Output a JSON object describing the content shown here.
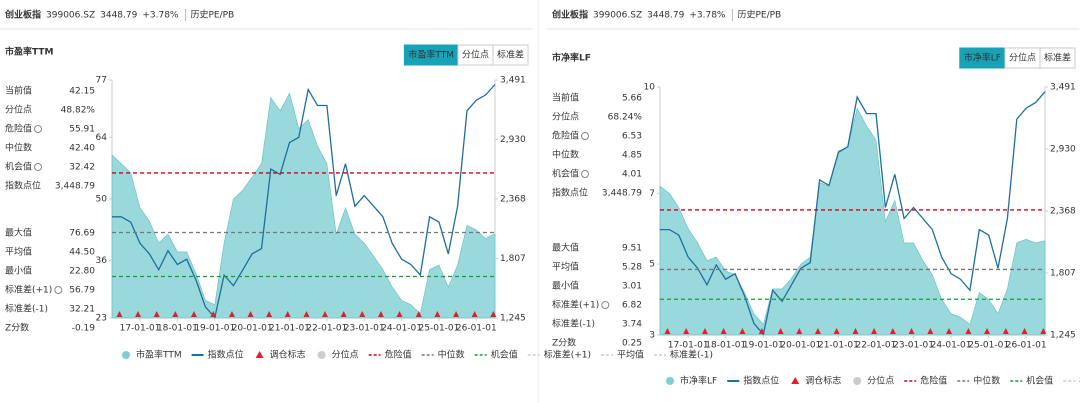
{
  "panels": [
    {
      "header": {
        "title": "创业板指",
        "code": "399006.SZ",
        "price": "3448.79",
        "change": "+3.78%",
        "link": "历史PE/PB"
      },
      "chart_title": "市盈率TTM",
      "tabs": [
        "市盈率TTM",
        "分位点",
        "标准差"
      ],
      "stats": [
        {
          "label": "当前值",
          "value": "42.15"
        },
        {
          "label": "分位点",
          "value": "48.82%"
        },
        {
          "label": "危险值",
          "value": "55.91",
          "info": true
        },
        {
          "label": "中位数",
          "value": "42.40"
        },
        {
          "label": "机会值",
          "value": "32.42",
          "info": true
        },
        {
          "label": "指数点位",
          "value": "3,448.79"
        },
        {
          "label": "最大值",
          "value": "76.69"
        },
        {
          "label": "平均值",
          "value": "44.50"
        },
        {
          "label": "最小值",
          "value": "22.80"
        },
        {
          "label": "标准差(+1)",
          "value": "56.79",
          "info": true
        },
        {
          "label": "标准差(-1)",
          "value": "32.21"
        },
        {
          "label": "Z分数",
          "value": "-0.19"
        }
      ],
      "chart_data": {
        "type": "line",
        "x": [
          "16-04-01",
          "16-07-01",
          "16-10-01",
          "17-01-01",
          "17-04-01",
          "17-07-01",
          "17-10-01",
          "18-01-01",
          "18-04-01",
          "18-07-01",
          "18-10-01",
          "19-01-01",
          "19-04-01",
          "19-07-01",
          "19-10-01",
          "20-01-01",
          "20-04-01",
          "20-07-01",
          "20-10-01",
          "21-01-01",
          "21-04-01",
          "21-07-01",
          "21-10-01",
          "22-01-01",
          "22-04-01",
          "22-07-01",
          "22-10-01",
          "23-01-01",
          "23-04-01",
          "23-07-01",
          "23-10-01",
          "24-01-01",
          "24-04-01",
          "24-07-01",
          "24-10-01",
          "25-01-01",
          "25-04-01",
          "25-07-01",
          "25-10-01",
          "26-01-01",
          "26-04-01",
          "26-07-01"
        ],
        "xlim": [
          "16-04-01",
          "26-07-01"
        ],
        "xticks": [
          "17-01-01",
          "18-01-01",
          "19-01-01",
          "20-01-01",
          "21-01-01",
          "22-01-01",
          "23-01-01",
          "24-01-01",
          "25-01-01",
          "26-01-01"
        ],
        "ylim": [
          23,
          77
        ],
        "yticks": [
          23,
          36,
          50,
          64,
          77
        ],
        "y2lim": [
          1245,
          3491
        ],
        "y2ticks": [
          {
            "value": 1245,
            "label": "1,245"
          },
          {
            "value": 1807,
            "label": "1,807"
          },
          {
            "value": 2368,
            "label": "2,368"
          },
          {
            "value": 2930,
            "label": "2,930"
          },
          {
            "value": 3491,
            "label": "3,491"
          }
        ],
        "series": [
          {
            "name": "市盈率TTM",
            "type": "area",
            "color": "#7fcfd2",
            "values": [
              60,
              58,
              56,
              48,
              45,
              40,
              42,
              38,
              38,
              33,
              27,
              26,
              40,
              50,
              52,
              55,
              58,
              73,
              70,
              74,
              66,
              68,
              62,
              58,
              42,
              48,
              42,
              40,
              37,
              34,
              30,
              27,
              26,
              24,
              34,
              35,
              30,
              35,
              44,
              43,
              41,
              42.15
            ]
          },
          {
            "name": "指数点位",
            "type": "line",
            "axis": "y2",
            "color": "#1d6f9e",
            "values": [
              2200,
              2200,
              2150,
              1950,
              1850,
              1700,
              1880,
              1750,
              1800,
              1600,
              1350,
              1250,
              1650,
              1550,
              1700,
              1850,
              1900,
              2650,
              2600,
              2900,
              2950,
              3400,
              3250,
              3250,
              2400,
              2700,
              2300,
              2400,
              2300,
              2200,
              1950,
              1800,
              1750,
              1650,
              2200,
              2150,
              1850,
              2300,
              3200,
              3300,
              3350,
              3448.79
            ]
          }
        ],
        "markers": {
          "name": "调仓标志",
          "color": "#e0202a",
          "x": [
            "16-06-13",
            "16-12-12",
            "17-06-12",
            "17-12-11",
            "18-06-11",
            "18-12-17",
            "19-06-17",
            "19-12-16",
            "20-06-15",
            "20-12-14",
            "21-06-15",
            "21-12-13",
            "22-06-13",
            "22-12-12",
            "23-06-12",
            "23-12-11",
            "24-06-17",
            "24-12-16",
            "25-06-16",
            "25-12-15",
            "26-06-15"
          ]
        },
        "inactive_series": [
          {
            "name": "分位点"
          }
        ],
        "reference_lines": [
          {
            "name": "危险值",
            "value": 55.91,
            "color": "#d0021b",
            "visible": true
          },
          {
            "name": "中位数",
            "value": 42.4,
            "color": "#777777",
            "visible": true
          },
          {
            "name": "机会值",
            "value": 32.42,
            "color": "#1a9a3c",
            "visible": true
          },
          {
            "name": "标准差(+1)",
            "value": 56.79,
            "color": "#cccccc",
            "visible": false
          },
          {
            "name": "平均值",
            "value": 44.5,
            "color": "#cccccc",
            "visible": false
          },
          {
            "name": "标准差(-1)",
            "value": 32.21,
            "color": "#cccccc",
            "visible": false
          }
        ]
      }
    },
    {
      "header": {
        "title": "创业板指",
        "code": "399006.SZ",
        "price": "3448.79",
        "change": "+3.78%",
        "link": "历史PE/PB"
      },
      "chart_title": "市净率LF",
      "tabs": [
        "市净率LF",
        "分位点",
        "标准差"
      ],
      "stats": [
        {
          "label": "当前值",
          "value": "5.66"
        },
        {
          "label": "分位点",
          "value": "68.24%"
        },
        {
          "label": "危险值",
          "value": "6.53",
          "info": true
        },
        {
          "label": "中位数",
          "value": "4.85"
        },
        {
          "label": "机会值",
          "value": "4.01",
          "info": true
        },
        {
          "label": "指数点位",
          "value": "3,448.79"
        },
        {
          "label": "最大值",
          "value": "9.51"
        },
        {
          "label": "平均值",
          "value": "5.28"
        },
        {
          "label": "最小值",
          "value": "3.01"
        },
        {
          "label": "标准差(+1)",
          "value": "6.82",
          "info": true
        },
        {
          "label": "标准差(-1)",
          "value": "3.74"
        },
        {
          "label": "Z分数",
          "value": "0.25"
        }
      ],
      "chart_data": {
        "type": "line",
        "x": [
          "16-04-01",
          "16-07-01",
          "16-10-01",
          "17-01-01",
          "17-04-01",
          "17-07-01",
          "17-10-01",
          "18-01-01",
          "18-04-01",
          "18-07-01",
          "18-10-01",
          "19-01-01",
          "19-04-01",
          "19-07-01",
          "19-10-01",
          "20-01-01",
          "20-04-01",
          "20-07-01",
          "20-10-01",
          "21-01-01",
          "21-04-01",
          "21-07-01",
          "21-10-01",
          "22-01-01",
          "22-04-01",
          "22-07-01",
          "22-10-01",
          "23-01-01",
          "23-04-01",
          "23-07-01",
          "23-10-01",
          "24-01-01",
          "24-04-01",
          "24-07-01",
          "24-10-01",
          "25-01-01",
          "25-04-01",
          "25-07-01",
          "25-10-01",
          "26-01-01",
          "26-04-01",
          "26-07-01"
        ],
        "xlim": [
          "16-04-01",
          "26-07-01"
        ],
        "xticks": [
          "17-01-01",
          "18-01-01",
          "19-01-01",
          "20-01-01",
          "21-01-01",
          "22-01-01",
          "23-01-01",
          "24-01-01",
          "25-01-01",
          "26-01-01"
        ],
        "ylim": [
          3,
          10
        ],
        "yticks": [
          3,
          5,
          7,
          10
        ],
        "y2lim": [
          1245,
          3491
        ],
        "y2ticks": [
          {
            "value": 1245,
            "label": "1,245"
          },
          {
            "value": 1807,
            "label": "1,807"
          },
          {
            "value": 2368,
            "label": "2,368"
          },
          {
            "value": 2930,
            "label": "2,930"
          },
          {
            "value": 3491,
            "label": "3,491"
          }
        ],
        "series": [
          {
            "name": "市净率LF",
            "type": "area",
            "color": "#7fcfd2",
            "values": [
              7.2,
              7.0,
              6.6,
              6.0,
              5.6,
              5.1,
              5.2,
              4.8,
              4.7,
              4.2,
              3.6,
              3.3,
              4.3,
              4.3,
              4.6,
              5.0,
              5.2,
              7.3,
              7.2,
              8.2,
              8.3,
              9.4,
              8.9,
              8.5,
              6.2,
              6.8,
              5.6,
              5.6,
              5.1,
              4.7,
              4.0,
              3.6,
              3.5,
              3.3,
              4.2,
              4.0,
              3.6,
              4.3,
              5.6,
              5.7,
              5.6,
              5.66
            ]
          },
          {
            "name": "指数点位",
            "type": "line",
            "axis": "y2",
            "color": "#1d6f9e",
            "values": [
              2200,
              2200,
              2150,
              1950,
              1850,
              1700,
              1880,
              1750,
              1800,
              1600,
              1350,
              1250,
              1650,
              1550,
              1700,
              1850,
              1900,
              2650,
              2600,
              2900,
              2950,
              3400,
              3250,
              3250,
              2400,
              2700,
              2300,
              2400,
              2300,
              2200,
              1950,
              1800,
              1750,
              1650,
              2200,
              2150,
              1850,
              2300,
              3200,
              3300,
              3350,
              3448.79
            ]
          }
        ],
        "markers": {
          "name": "调仓标志",
          "color": "#e0202a",
          "x": [
            "16-06-13",
            "16-12-12",
            "17-06-12",
            "17-12-11",
            "18-06-11",
            "18-12-17",
            "19-06-17",
            "19-12-16",
            "20-06-15",
            "20-12-14",
            "21-06-15",
            "21-12-13",
            "22-06-13",
            "22-12-12",
            "23-06-12",
            "23-12-11",
            "24-06-17",
            "24-12-16",
            "25-06-16",
            "25-12-15",
            "26-06-15"
          ]
        },
        "inactive_series": [
          {
            "name": "分位点"
          }
        ],
        "reference_lines": [
          {
            "name": "危险值",
            "value": 6.53,
            "color": "#d0021b",
            "visible": true
          },
          {
            "name": "中位数",
            "value": 4.85,
            "color": "#777777",
            "visible": true
          },
          {
            "name": "机会值",
            "value": 4.01,
            "color": "#1a9a3c",
            "visible": true
          },
          {
            "name": "标准差(+1)",
            "value": 6.82,
            "color": "#cccccc",
            "visible": false
          },
          {
            "name": "平均值",
            "value": 5.28,
            "color": "#cccccc",
            "visible": false
          },
          {
            "name": "标准差(-1)",
            "value": 3.74,
            "color": "#cccccc",
            "visible": false
          }
        ]
      }
    }
  ]
}
